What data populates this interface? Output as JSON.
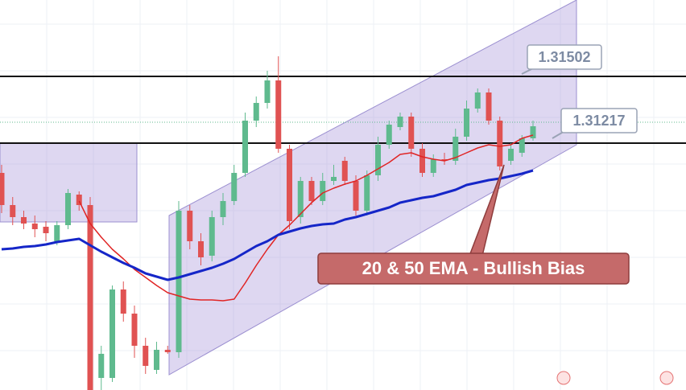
{
  "chart_data": {
    "type": "candlestick",
    "ylim": [
      1.29552,
      1.31977
    ],
    "up_color": "#5fba8e",
    "down_color": "#e05252",
    "candles": {
      "open": [
        1.30902,
        1.30702,
        1.30627,
        1.30587,
        1.30567,
        1.30477,
        1.30577,
        1.30767,
        1.30702,
        1.29627,
        1.29627,
        1.30177,
        1.30027,
        1.29827,
        1.29677,
        1.29802,
        1.29787,
        1.30667,
        1.30477,
        1.30387,
        1.30627,
        1.30727,
        1.30902,
        1.31227,
        1.31337,
        1.31477,
        1.31052,
        1.30627,
        1.30852,
        1.30727,
        1.30852,
        1.30977,
        1.30852,
        1.30667,
        1.30887,
        1.31077,
        1.31187,
        1.31252,
        1.31052,
        1.30902,
        1.30987,
        1.30977,
        1.31127,
        1.31302,
        1.31402,
        1.31227,
        1.30977,
        1.31027,
        1.31117
      ],
      "high": [
        1.30952,
        1.30752,
        1.30667,
        1.30637,
        1.30602,
        1.30602,
        1.30802,
        1.30787,
        1.30752,
        1.29827,
        1.30202,
        1.30227,
        1.30077,
        1.29877,
        1.29852,
        1.29827,
        1.30727,
        1.30702,
        1.30527,
        1.30667,
        1.30777,
        1.30952,
        1.31277,
        1.31377,
        1.31537,
        1.31627,
        1.31077,
        1.30877,
        1.30877,
        1.30902,
        1.30952,
        1.31002,
        1.30887,
        1.30917,
        1.31127,
        1.31227,
        1.31277,
        1.31277,
        1.31087,
        1.31017,
        1.31027,
        1.31177,
        1.31352,
        1.31427,
        1.31427,
        1.31252,
        1.31087,
        1.31137,
        1.31227
      ],
      "low": [
        1.30652,
        1.30577,
        1.30552,
        1.30502,
        1.30477,
        1.30452,
        1.30552,
        1.30667,
        1.29552,
        1.29552,
        1.29602,
        1.29977,
        1.29752,
        1.29652,
        1.29652,
        1.29777,
        1.29752,
        1.30427,
        1.30327,
        1.30352,
        1.30577,
        1.30702,
        1.30877,
        1.31187,
        1.31302,
        1.31027,
        1.30552,
        1.30587,
        1.30702,
        1.30702,
        1.30827,
        1.30827,
        1.30637,
        1.30637,
        1.30852,
        1.31052,
        1.31167,
        1.31002,
        1.30877,
        1.30877,
        1.30952,
        1.30952,
        1.31102,
        1.31277,
        1.31202,
        1.30917,
        1.30952,
        1.31002,
        1.31102
      ],
      "close": [
        1.30702,
        1.30627,
        1.30587,
        1.30552,
        1.30527,
        1.30577,
        1.30777,
        1.30702,
        1.29552,
        1.29777,
        1.30177,
        1.30027,
        1.29827,
        1.29702,
        1.29802,
        1.29787,
        1.30667,
        1.30477,
        1.30377,
        1.30627,
        1.30727,
        1.30902,
        1.31227,
        1.31337,
        1.31477,
        1.31052,
        1.30602,
        1.30852,
        1.30727,
        1.30852,
        1.30877,
        1.30852,
        1.30667,
        1.30887,
        1.31077,
        1.31202,
        1.31252,
        1.31052,
        1.30902,
        1.30987,
        1.30977,
        1.31127,
        1.31302,
        1.31402,
        1.31227,
        1.30942,
        1.31052,
        1.31117,
        1.31192
      ]
    },
    "lines": [
      {
        "color": "#e02424",
        "values": [
          null,
          null,
          null,
          null,
          null,
          null,
          null,
          1.30727,
          1.30587,
          1.30502,
          1.30427,
          1.30367,
          1.30302,
          1.30252,
          1.30202,
          1.30157,
          1.30137,
          1.30117,
          1.30112,
          1.30112,
          1.30107,
          1.30117,
          1.30217,
          1.30327,
          1.30427,
          1.30517,
          1.30577,
          1.30647,
          1.30717,
          1.30777,
          1.30807,
          1.30832,
          1.30852,
          1.30887,
          1.30927,
          1.30967,
          1.31017,
          1.31027,
          1.31002,
          1.30987,
          1.30977,
          1.30997,
          1.31027,
          1.31057,
          1.31077,
          1.31067,
          1.31077,
          1.31117,
          1.31137
        ]
      },
      {
        "color": "#1526c8",
        "values": [
          1.30427,
          1.30432,
          1.30442,
          1.30447,
          1.30457,
          1.30472,
          1.30482,
          1.30492,
          1.30452,
          1.30412,
          1.30377,
          1.30342,
          1.30312,
          1.30277,
          1.30257,
          1.30237,
          1.30252,
          1.30272,
          1.30292,
          1.30312,
          1.30337,
          1.30367,
          1.30407,
          1.30447,
          1.30477,
          1.30517,
          1.30537,
          1.30557,
          1.30572,
          1.30582,
          1.30587,
          1.30612,
          1.30627,
          1.30647,
          1.30667,
          1.30687,
          1.30717,
          1.30732,
          1.30747,
          1.30757,
          1.30777,
          1.30797,
          1.30827,
          1.30842,
          1.30857,
          1.30867,
          1.30882,
          1.30897,
          1.30917
        ]
      }
    ],
    "levels": [
      1.31502,
      1.31087
    ],
    "price_labels": [
      1.31502,
      1.31217
    ],
    "annotation": "20 & 50 EMA - Bullish Bias"
  }
}
